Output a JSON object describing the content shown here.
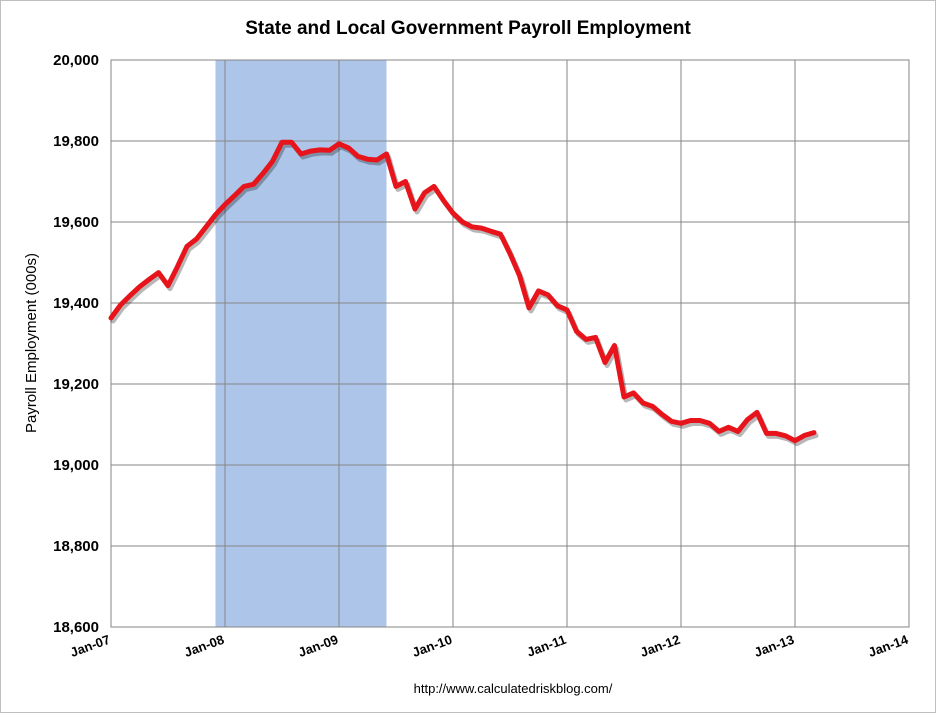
{
  "chart_data": {
    "type": "line",
    "title": "State and Local Government Payroll Employment",
    "xlabel": "",
    "ylabel": "Payroll Employment (000s)",
    "ylim": [
      18600,
      20000
    ],
    "yticks": [
      18600,
      18800,
      19000,
      19200,
      19400,
      19600,
      19800,
      20000
    ],
    "ytick_labels": [
      "18,600",
      "18,800",
      "19,000",
      "19,200",
      "19,400",
      "19,600",
      "19,800",
      "20,000"
    ],
    "xlim": [
      "2007-01",
      "2014-01"
    ],
    "xticks": [
      "2007-01",
      "2008-01",
      "2009-01",
      "2010-01",
      "2011-01",
      "2012-01",
      "2013-01",
      "2014-01"
    ],
    "xtick_labels": [
      "Jan-07",
      "Jan-08",
      "Jan-09",
      "Jan-10",
      "Jan-11",
      "Jan-12",
      "Jan-13",
      "Jan-14"
    ],
    "grid": true,
    "recession_shading": {
      "start": "2007-12",
      "end": "2009-06",
      "color": "#adc5e8"
    },
    "line_color": "#e8141b",
    "series": [
      {
        "x": [
          "2007-01",
          "2007-02",
          "2007-03",
          "2007-04",
          "2007-05",
          "2007-06",
          "2007-07",
          "2007-08",
          "2007-09",
          "2007-10",
          "2007-11",
          "2007-12",
          "2008-01",
          "2008-02",
          "2008-03",
          "2008-04",
          "2008-05",
          "2008-06",
          "2008-07",
          "2008-08",
          "2008-09",
          "2008-10",
          "2008-11",
          "2008-12",
          "2009-01",
          "2009-02",
          "2009-03",
          "2009-04",
          "2009-05",
          "2009-06",
          "2009-07",
          "2009-08",
          "2009-09",
          "2009-10",
          "2009-11",
          "2009-12",
          "2010-01",
          "2010-02",
          "2010-03",
          "2010-04",
          "2010-05",
          "2010-06",
          "2010-07",
          "2010-08",
          "2010-09",
          "2010-10",
          "2010-11",
          "2010-12",
          "2011-01",
          "2011-02",
          "2011-03",
          "2011-04",
          "2011-05",
          "2011-06",
          "2011-07",
          "2011-08",
          "2011-09",
          "2011-10",
          "2011-11",
          "2011-12",
          "2012-01",
          "2012-02",
          "2012-03",
          "2012-04",
          "2012-05",
          "2012-06",
          "2012-07",
          "2012-08",
          "2012-09",
          "2012-10",
          "2012-11",
          "2012-12",
          "2013-01",
          "2013-02",
          "2013-03"
        ],
        "values": [
          19363,
          19395,
          19418,
          19440,
          19458,
          19475,
          19443,
          19490,
          19540,
          19558,
          19588,
          19618,
          19643,
          19665,
          19688,
          19693,
          19720,
          19750,
          19797,
          19797,
          19768,
          19775,
          19778,
          19777,
          19793,
          19783,
          19762,
          19755,
          19753,
          19768,
          19688,
          19700,
          19632,
          19672,
          19688,
          19653,
          19622,
          19600,
          19588,
          19585,
          19577,
          19570,
          19522,
          19468,
          19388,
          19430,
          19420,
          19393,
          19383,
          19330,
          19310,
          19315,
          19253,
          19295,
          19168,
          19178,
          19153,
          19145,
          19125,
          19108,
          19103,
          19110,
          19110,
          19103,
          19083,
          19093,
          19083,
          19112,
          19130,
          19078,
          19078,
          19072,
          19060,
          19073,
          19080
        ]
      }
    ]
  },
  "footer": {
    "source": "http://www.calculatedriskblog.com/"
  }
}
